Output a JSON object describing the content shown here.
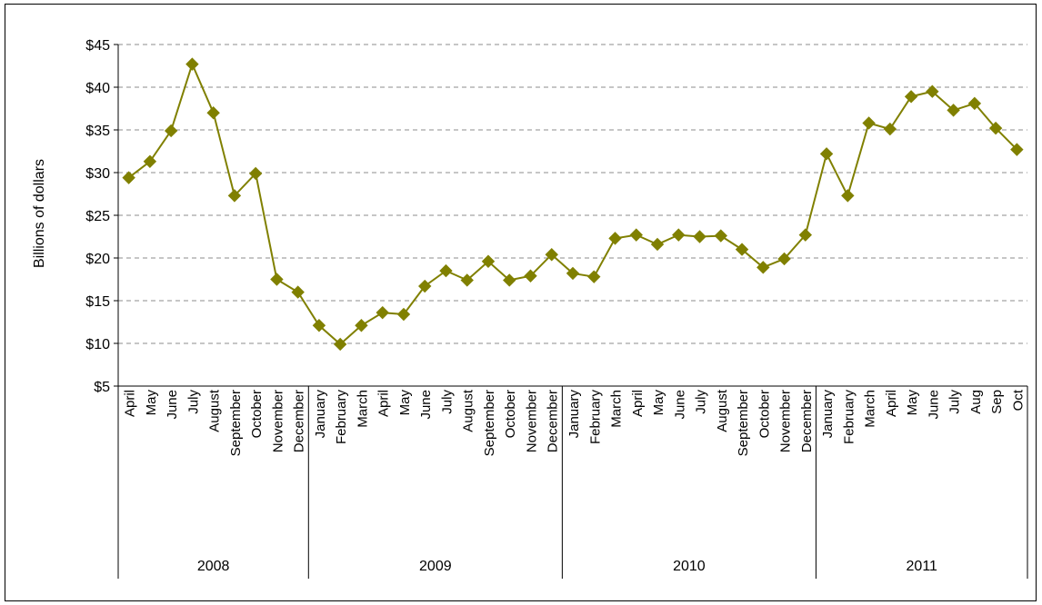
{
  "chart_data": {
    "type": "line",
    "ylabel": "Billions of dollars",
    "ylim": [
      5,
      45
    ],
    "y_ticks": [
      "$45",
      "$40",
      "$35",
      "$30",
      "$25",
      "$20",
      "$15",
      "$10",
      "$5"
    ],
    "y_tick_values": [
      45,
      40,
      35,
      30,
      25,
      20,
      15,
      10,
      5
    ],
    "grid": "horizontal-dashed",
    "legend": "none",
    "series_color": "#808000",
    "groups": [
      {
        "label": "2008",
        "categories": [
          "April",
          "May",
          "June",
          "July",
          "August",
          "September",
          "October",
          "November",
          "December"
        ]
      },
      {
        "label": "2009",
        "categories": [
          "January",
          "February",
          "March",
          "April",
          "May",
          "June",
          "July",
          "August",
          "September",
          "October",
          "November",
          "December"
        ]
      },
      {
        "label": "2010",
        "categories": [
          "January",
          "February",
          "March",
          "April",
          "May",
          "June",
          "July",
          "August",
          "September",
          "October",
          "November",
          "December"
        ]
      },
      {
        "label": "2011",
        "categories": [
          "January",
          "February",
          "March",
          "April",
          "May",
          "June",
          "July",
          "Aug",
          "Sep",
          "Oct"
        ]
      }
    ],
    "series": [
      {
        "values": [
          29.4,
          31.3,
          34.9,
          42.7,
          37.0,
          27.3,
          29.9,
          17.5,
          16.0,
          12.1,
          9.9,
          12.1,
          13.6,
          13.4,
          16.7,
          18.5,
          17.4,
          19.6,
          17.4,
          17.9,
          20.4,
          18.2,
          17.8,
          22.3,
          22.7,
          21.6,
          22.7,
          22.5,
          22.6,
          21.0,
          18.9,
          19.9,
          22.7,
          32.2,
          27.3,
          35.8,
          35.1,
          38.9,
          39.5,
          37.3,
          38.1,
          35.2,
          32.7
        ]
      }
    ]
  }
}
